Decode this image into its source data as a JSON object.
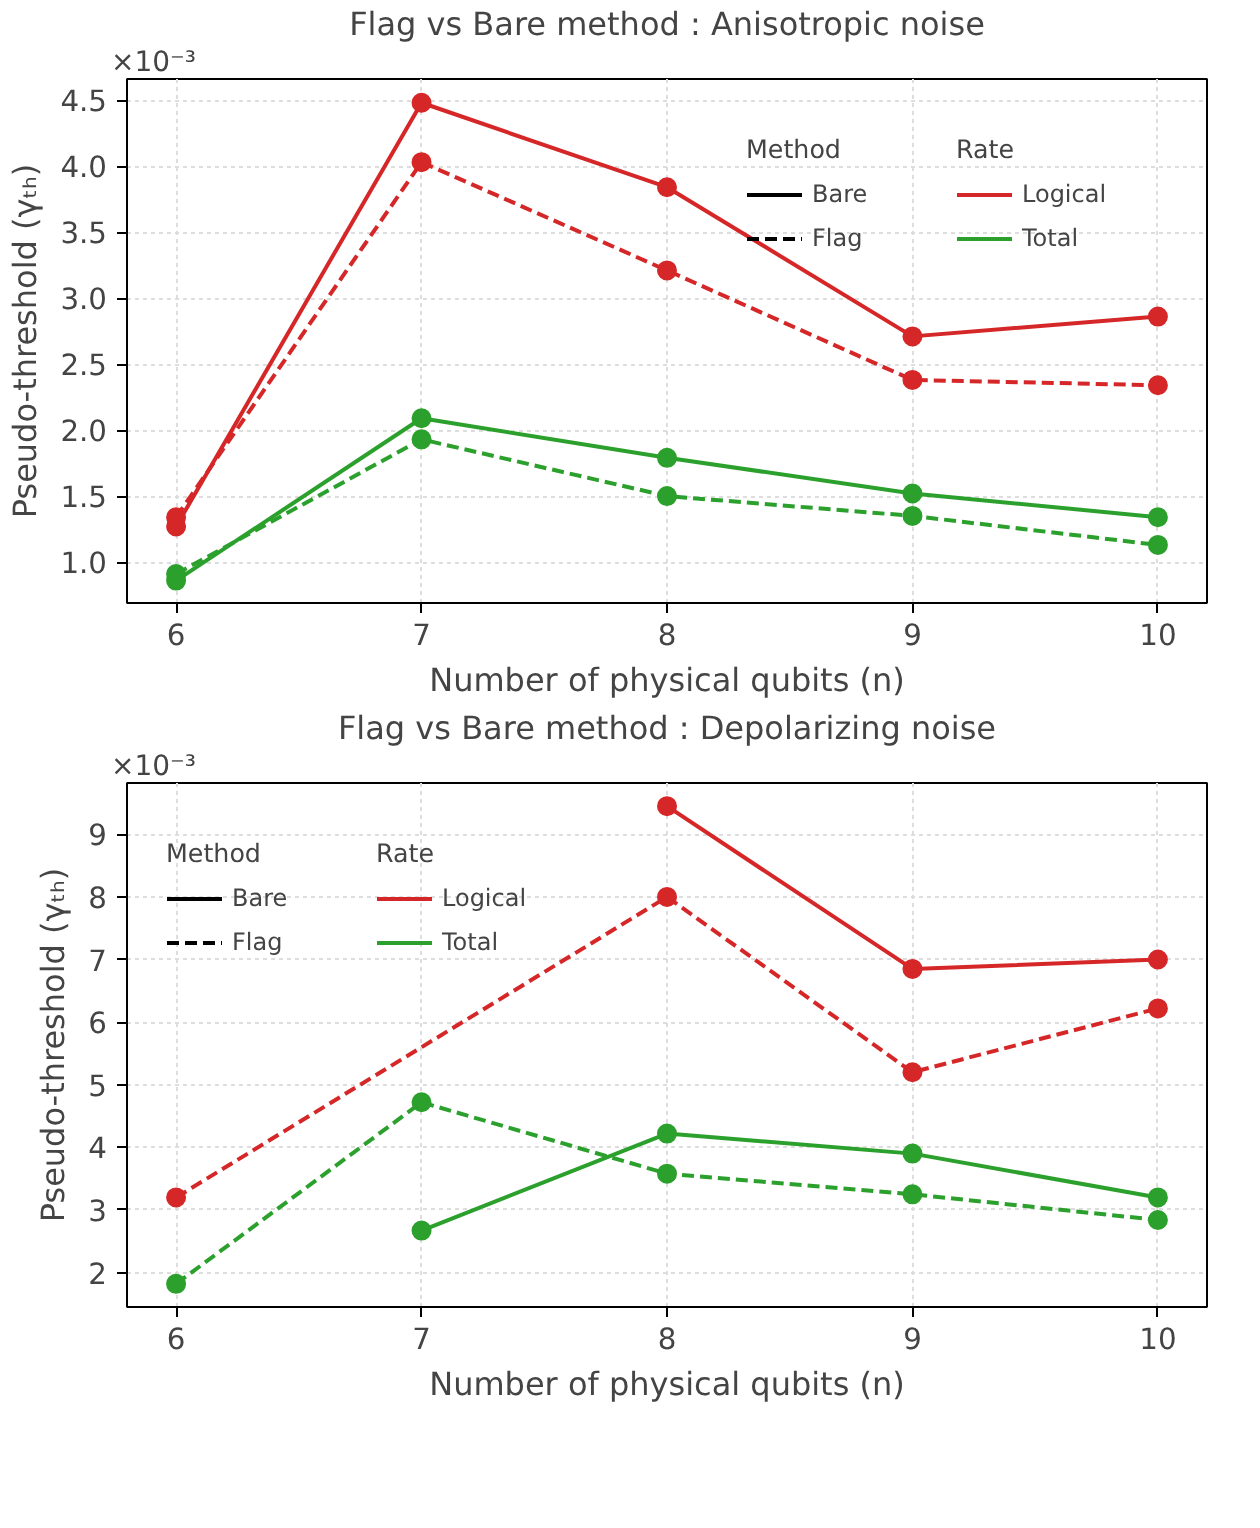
{
  "chart_data": [
    {
      "type": "line",
      "title": "Flag vs Bare method : Anisotropic noise",
      "xlabel": "Number of physical qubits (n)",
      "ylabel": "Pseudo-threshold (γₜₕ)",
      "annotations": [
        "×10⁻³"
      ],
      "x": [
        6,
        7,
        8,
        9,
        10
      ],
      "xlim": [
        5.8,
        10.2
      ],
      "xticks": [
        6,
        7,
        8,
        9,
        10
      ],
      "ylim": [
        0.69,
        4.66
      ],
      "yticks": [
        {
          "value": 1.0,
          "label": "1.0"
        },
        1.5,
        {
          "value": 2.0,
          "label": "2.0"
        },
        2.5,
        {
          "value": 3.0,
          "label": "3.0"
        },
        3.5,
        {
          "value": 4.0,
          "label": "4.0"
        },
        4.5
      ],
      "grid": true,
      "marker": "circle",
      "legend": "top right",
      "legend_title": [
        "Method",
        "Rate"
      ],
      "series": [
        {
          "name": "Bare",
          "color": "#000000",
          "line_style": "solid",
          "values": [
            null,
            null,
            null,
            null,
            null
          ]
        },
        {
          "name": "Flag",
          "color": "#000000",
          "line_style": "dashed",
          "values": [
            null,
            null,
            null,
            null,
            null
          ]
        },
        {
          "name": "Logical",
          "color": "#d62728",
          "line_style": "solid",
          "values": [
            null,
            null,
            null,
            null,
            null
          ]
        },
        {
          "name": "Total",
          "color": "#2ca02c",
          "line_style": "solid",
          "values": [
            null,
            null,
            null,
            null,
            null
          ]
        },
        {
          "color": "#d62728",
          "line_style": "solid",
          "values": [
            1.27,
            4.48,
            3.84,
            2.71,
            2.86
          ]
        },
        {
          "color": "#d62728",
          "line_style": "dashed",
          "values": [
            1.34,
            4.03,
            3.21,
            2.38,
            2.34
          ]
        },
        {
          "color": "#2ca02c",
          "line_style": "solid",
          "values": [
            0.86,
            2.09,
            1.79,
            1.52,
            1.34
          ]
        },
        {
          "color": "#2ca02c",
          "line_style": "dashed",
          "values": [
            0.91,
            1.93,
            1.5,
            1.35,
            1.13
          ]
        }
      ]
    },
    {
      "type": "line",
      "title": "Flag vs Bare method : Depolarizing noise",
      "xlabel": "Number of physical qubits (n)",
      "ylabel": "Pseudo-threshold (γₜₕ)",
      "annotations": [
        "×10⁻³"
      ],
      "x": [
        6,
        7,
        8,
        9,
        10
      ],
      "xlim": [
        5.8,
        10.2
      ],
      "xticks": [
        6,
        7,
        8,
        9,
        10
      ],
      "ylim": [
        1.45,
        9.82
      ],
      "yticks": [
        2,
        3,
        4,
        5,
        6,
        7,
        8,
        9
      ],
      "grid": true,
      "marker": "circle",
      "legend": "top left",
      "legend_title": [
        "Method",
        "Rate"
      ],
      "series": [
        {
          "name": "Bare",
          "color": "#000000",
          "line_style": "solid",
          "values": [
            null,
            null,
            null,
            null,
            null
          ]
        },
        {
          "name": "Flag",
          "color": "#000000",
          "line_style": "dashed",
          "values": [
            null,
            null,
            null,
            null,
            null
          ]
        },
        {
          "name": "Logical",
          "color": "#d62728",
          "line_style": "solid",
          "values": [
            null,
            null,
            null,
            null,
            null
          ]
        },
        {
          "name": "Total",
          "color": "#2ca02c",
          "line_style": "solid",
          "values": [
            null,
            null,
            null,
            null,
            null
          ]
        },
        {
          "color": "#d62728",
          "line_style": "solid",
          "x": [
            8,
            9,
            10
          ],
          "values": [
            9.45,
            6.85,
            7.0
          ]
        },
        {
          "color": "#d62728",
          "line_style": "dashed",
          "x": [
            6,
            8,
            9,
            10
          ],
          "values": [
            3.2,
            8.0,
            5.2,
            6.22
          ]
        },
        {
          "color": "#2ca02c",
          "line_style": "solid",
          "x": [
            7,
            8,
            9,
            10
          ],
          "values": [
            2.67,
            4.22,
            3.9,
            3.2
          ]
        },
        {
          "color": "#2ca02c",
          "line_style": "dashed",
          "values": [
            1.82,
            4.72,
            3.58,
            3.25,
            2.84
          ]
        }
      ]
    }
  ]
}
